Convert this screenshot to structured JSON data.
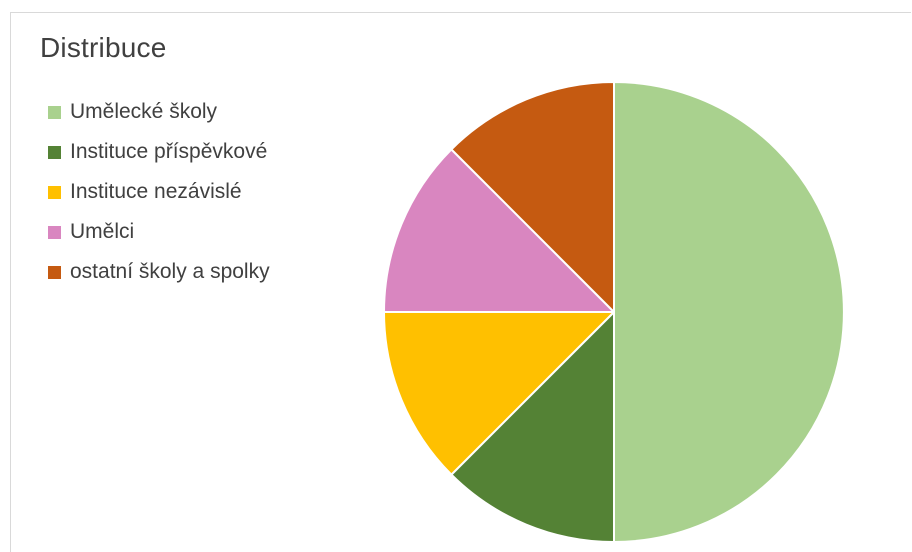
{
  "chart_data": {
    "type": "pie",
    "title": "Distribuce",
    "categories": [
      "Umělecké školy",
      "Instituce příspěvkové",
      "Instituce nezávislé",
      "Umělci",
      "ostatní školy a spolky"
    ],
    "values": [
      50,
      12.5,
      12.5,
      12.5,
      12.5
    ],
    "colors": [
      "#a9d18e",
      "#548235",
      "#ffc000",
      "#d986c0",
      "#c55a11"
    ],
    "legend": "left",
    "start_angle_deg": 0,
    "direction": "clockwise"
  }
}
